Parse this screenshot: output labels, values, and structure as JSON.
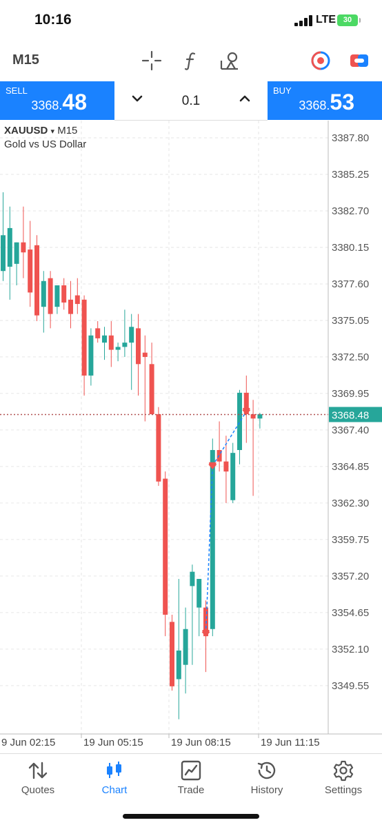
{
  "status": {
    "time": "10:16",
    "network": "LTE",
    "battery": "30"
  },
  "toolbar": {
    "timeframe": "M15",
    "icons": [
      "crosshair-icon",
      "function-icon",
      "objects-icon",
      "trade-circle-icon",
      "switch-icon"
    ]
  },
  "trade": {
    "sell_label": "SELL",
    "sell_price_prefix": "3368.",
    "sell_price_big": "48",
    "buy_label": "BUY",
    "buy_price_prefix": "3368.",
    "buy_price_big": "53",
    "lot": "0.1"
  },
  "chart": {
    "symbol": "XAUUSD",
    "timeframe": "M15",
    "description": "Gold vs US Dollar",
    "current_price_label": "3368.48",
    "colors": {
      "bull": "#26a69a",
      "bear": "#ef5350",
      "line": "#1a82ff"
    }
  },
  "chart_data": {
    "type": "candlestick",
    "ylim": [
      3347.0,
      3389.0
    ],
    "y_ticks": [
      "3387.80",
      "3385.25",
      "3382.70",
      "3380.15",
      "3377.60",
      "3375.05",
      "3372.50",
      "3369.95",
      "3367.40",
      "3364.85",
      "3362.30",
      "3359.75",
      "3357.20",
      "3354.65",
      "3352.10",
      "3349.55"
    ],
    "x_ticks": [
      "9 Jun 02:15",
      "19 Jun 05:15",
      "19 Jun 08:15",
      "19 Jun 11:15"
    ],
    "current_price": 3368.48,
    "candles": [
      {
        "o": 3378.5,
        "h": 3384.0,
        "l": 3377.8,
        "c": 3381.0
      },
      {
        "o": 3378.8,
        "h": 3383.0,
        "l": 3376.5,
        "c": 3381.5
      },
      {
        "o": 3379.0,
        "h": 3380.5,
        "l": 3377.5,
        "c": 3380.5
      },
      {
        "o": 3380.5,
        "h": 3383.0,
        "l": 3378.0,
        "c": 3379.8
      },
      {
        "o": 3380.0,
        "h": 3382.0,
        "l": 3376.0,
        "c": 3377.0
      },
      {
        "o": 3380.3,
        "h": 3381.0,
        "l": 3375.0,
        "c": 3375.4
      },
      {
        "o": 3376.0,
        "h": 3378.5,
        "l": 3374.2,
        "c": 3377.8
      },
      {
        "o": 3378.0,
        "h": 3378.5,
        "l": 3374.5,
        "c": 3375.5
      },
      {
        "o": 3376.0,
        "h": 3377.5,
        "l": 3375.5,
        "c": 3377.5
      },
      {
        "o": 3377.5,
        "h": 3378.0,
        "l": 3375.8,
        "c": 3376.3
      },
      {
        "o": 3376.5,
        "h": 3377.8,
        "l": 3374.5,
        "c": 3375.5
      },
      {
        "o": 3376.8,
        "h": 3378.0,
        "l": 3375.5,
        "c": 3376.2
      },
      {
        "o": 3376.5,
        "h": 3376.8,
        "l": 3369.8,
        "c": 3371.2
      },
      {
        "o": 3371.2,
        "h": 3374.5,
        "l": 3370.5,
        "c": 3374.0
      },
      {
        "o": 3374.5,
        "h": 3375.0,
        "l": 3373.5,
        "c": 3373.8
      },
      {
        "o": 3373.5,
        "h": 3374.6,
        "l": 3372.3,
        "c": 3374.0
      },
      {
        "o": 3374.0,
        "h": 3375.0,
        "l": 3371.8,
        "c": 3373.0
      },
      {
        "o": 3373.0,
        "h": 3373.5,
        "l": 3372.2,
        "c": 3373.2
      },
      {
        "o": 3373.2,
        "h": 3375.8,
        "l": 3372.5,
        "c": 3373.5
      },
      {
        "o": 3373.5,
        "h": 3375.5,
        "l": 3370.2,
        "c": 3374.6
      },
      {
        "o": 3374.5,
        "h": 3375.5,
        "l": 3369.8,
        "c": 3372.0
      },
      {
        "o": 3372.8,
        "h": 3374.0,
        "l": 3368.0,
        "c": 3372.5
      },
      {
        "o": 3372.0,
        "h": 3373.5,
        "l": 3368.5,
        "c": 3368.5
      },
      {
        "o": 3368.5,
        "h": 3369.0,
        "l": 3363.5,
        "c": 3363.8
      },
      {
        "o": 3364.0,
        "h": 3364.5,
        "l": 3353.0,
        "c": 3354.5
      },
      {
        "o": 3354.0,
        "h": 3354.5,
        "l": 3349.2,
        "c": 3349.5
      },
      {
        "o": 3350.0,
        "h": 3357.0,
        "l": 3347.2,
        "c": 3352.0
      },
      {
        "o": 3351.0,
        "h": 3355.0,
        "l": 3349.0,
        "c": 3353.5
      },
      {
        "o": 3356.5,
        "h": 3358.0,
        "l": 3351.0,
        "c": 3357.5
      },
      {
        "o": 3355.0,
        "h": 3357.0,
        "l": 3353.0,
        "c": 3357.0
      },
      {
        "o": 3355.0,
        "h": 3355.5,
        "l": 3350.5,
        "c": 3353.0
      },
      {
        "o": 3353.5,
        "h": 3366.8,
        "l": 3353.0,
        "c": 3366.0
      },
      {
        "o": 3366.0,
        "h": 3368.0,
        "l": 3364.5,
        "c": 3365.2
      },
      {
        "o": 3365.2,
        "h": 3367.0,
        "l": 3362.3,
        "c": 3364.5
      },
      {
        "o": 3362.5,
        "h": 3366.5,
        "l": 3362.3,
        "c": 3365.8
      },
      {
        "o": 3366.0,
        "h": 3370.2,
        "l": 3365.0,
        "c": 3370.0
      },
      {
        "o": 3370.0,
        "h": 3371.2,
        "l": 3366.5,
        "c": 3368.5
      },
      {
        "o": 3368.5,
        "h": 3369.5,
        "l": 3362.8,
        "c": 3368.2
      },
      {
        "o": 3368.2,
        "h": 3368.6,
        "l": 3367.5,
        "c": 3368.5
      }
    ],
    "trades": [
      {
        "from_index": 30,
        "from_price": 3353.2,
        "to_index": 31,
        "to_price": 3364.9,
        "type": "sell-markers"
      },
      {
        "from_index": 31,
        "from_price": 3364.9,
        "to_index": 36,
        "to_price": 3368.7,
        "type": "sell-markers"
      }
    ]
  },
  "nav": {
    "items": [
      {
        "label": "Quotes",
        "icon": "quotes-icon"
      },
      {
        "label": "Chart",
        "icon": "chart-icon"
      },
      {
        "label": "Trade",
        "icon": "trade-icon"
      },
      {
        "label": "History",
        "icon": "history-icon"
      },
      {
        "label": "Settings",
        "icon": "settings-icon"
      }
    ],
    "active": "Chart"
  }
}
